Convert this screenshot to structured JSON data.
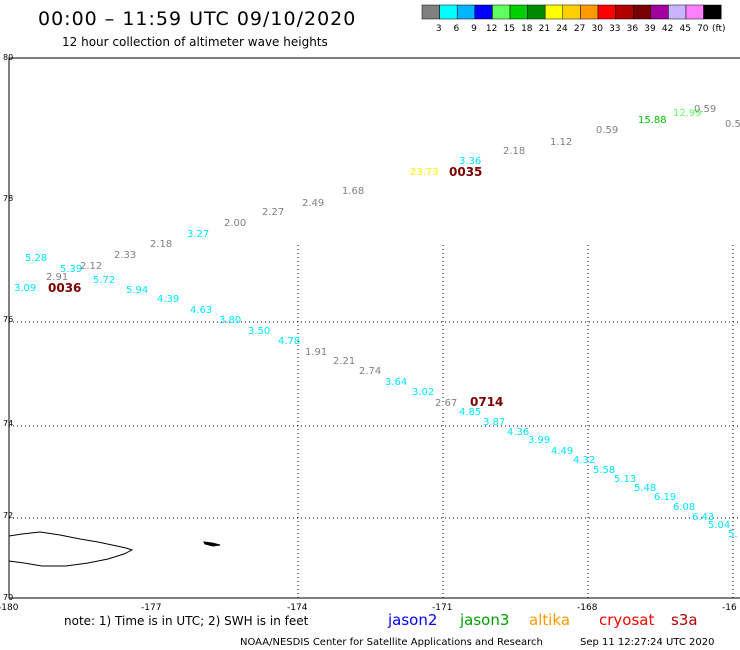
{
  "header": {
    "title": "00:00 – 11:59 UTC 09/10/2020",
    "subtitle": "12 hour collection of altimeter wave heights"
  },
  "legend": {
    "unit": "(ft)",
    "bins": [
      {
        "label": "3",
        "color": "#808080"
      },
      {
        "label": "6",
        "color": "#00ffff"
      },
      {
        "label": "9",
        "color": "#00b4ff"
      },
      {
        "label": "12",
        "color": "#0000ff"
      },
      {
        "label": "15",
        "color": "#60ff60"
      },
      {
        "label": "18",
        "color": "#00d000"
      },
      {
        "label": "21",
        "color": "#008800"
      },
      {
        "label": "24",
        "color": "#ffff00"
      },
      {
        "label": "27",
        "color": "#ffd000"
      },
      {
        "label": "30",
        "color": "#ff9900"
      },
      {
        "label": "33",
        "color": "#ff0000"
      },
      {
        "label": "36",
        "color": "#b00000"
      },
      {
        "label": "39",
        "color": "#780000"
      },
      {
        "label": "42",
        "color": "#a000a0"
      },
      {
        "label": "45",
        "color": "#c8b4ff"
      },
      {
        "label": "70",
        "color": "#ff80ff"
      },
      {
        "label": "",
        "color": "#000000"
      }
    ]
  },
  "axes": {
    "x_ticks": [
      "-180",
      "-177",
      "-174",
      "-171",
      "-168",
      "-16"
    ],
    "y_ticks": [
      "80",
      "78",
      "76",
      "74",
      "72",
      "70"
    ]
  },
  "observations": [
    {
      "text": "5.28",
      "color": "#00e5ff"
    },
    {
      "text": "2.91",
      "color": "#808080"
    },
    {
      "text": "5.39",
      "color": "#00e5ff"
    },
    {
      "text": "2.12",
      "color": "#808080"
    },
    {
      "text": "2.33",
      "color": "#808080"
    },
    {
      "text": "3.09",
      "color": "#00e5ff"
    },
    {
      "text": "0036",
      "color": "#780000"
    },
    {
      "text": "5.72",
      "color": "#00e5ff"
    },
    {
      "text": "5.94",
      "color": "#00e5ff"
    },
    {
      "text": "2.18",
      "color": "#808080"
    },
    {
      "text": "3.27",
      "color": "#00e5ff"
    },
    {
      "text": "4.39",
      "color": "#00e5ff"
    },
    {
      "text": "2.00",
      "color": "#808080"
    },
    {
      "text": "4.63",
      "color": "#00e5ff"
    },
    {
      "text": "2.27",
      "color": "#808080"
    },
    {
      "text": "3.80",
      "color": "#00e5ff"
    },
    {
      "text": "2.49",
      "color": "#808080"
    },
    {
      "text": "3.50",
      "color": "#00e5ff"
    },
    {
      "text": "4.78",
      "color": "#00e5ff"
    },
    {
      "text": "1.68",
      "color": "#808080"
    },
    {
      "text": "1.91",
      "color": "#808080"
    },
    {
      "text": "2.21",
      "color": "#808080"
    },
    {
      "text": "23.73",
      "color": "#ffff00"
    },
    {
      "text": "0035",
      "color": "#780000"
    },
    {
      "text": "3.36",
      "color": "#00e5ff"
    },
    {
      "text": "2.74",
      "color": "#808080"
    },
    {
      "text": "3.64",
      "color": "#00e5ff"
    },
    {
      "text": "3.02",
      "color": "#00e5ff"
    },
    {
      "text": "2.67",
      "color": "#808080"
    },
    {
      "text": "0714",
      "color": "#780000"
    },
    {
      "text": "4.85",
      "color": "#00e5ff"
    },
    {
      "text": "3.87",
      "color": "#00e5ff"
    },
    {
      "text": "2.18",
      "color": "#808080"
    },
    {
      "text": "4.36",
      "color": "#00e5ff"
    },
    {
      "text": "3.99",
      "color": "#00e5ff"
    },
    {
      "text": "1.12",
      "color": "#808080"
    },
    {
      "text": "4.49",
      "color": "#00e5ff"
    },
    {
      "text": "4.32",
      "color": "#00e5ff"
    },
    {
      "text": "0.59",
      "color": "#808080"
    },
    {
      "text": "5.58",
      "color": "#00e5ff"
    },
    {
      "text": "5.13",
      "color": "#00e5ff"
    },
    {
      "text": "5.48",
      "color": "#00e5ff"
    },
    {
      "text": "15.88",
      "color": "#00c000"
    },
    {
      "text": "6.19",
      "color": "#00e5ff"
    },
    {
      "text": "12.99",
      "color": "#60ff60"
    },
    {
      "text": "6.08",
      "color": "#00e5ff"
    },
    {
      "text": "0.59",
      "color": "#808080"
    },
    {
      "text": "6.43",
      "color": "#00e5ff"
    },
    {
      "text": "0.5",
      "color": "#808080"
    },
    {
      "text": "5.04",
      "color": "#00e5ff"
    },
    {
      "text": "5.",
      "color": "#00e5ff"
    }
  ],
  "footer": {
    "note": "note:  1) Time is in UTC; 2) SWH is in feet",
    "satellites": [
      {
        "name": "jason2",
        "color": "#0000ff"
      },
      {
        "name": "jason3",
        "color": "#00a000"
      },
      {
        "name": "altika",
        "color": "#ff9900"
      },
      {
        "name": "cryosat",
        "color": "#ff0000"
      },
      {
        "name": "s3a",
        "color": "#b00000"
      }
    ],
    "credit": "NOAA/NESDIS Center for Satellite Applications and Research",
    "timestamp": "Sep 11 12:27:24 UTC 2020"
  }
}
